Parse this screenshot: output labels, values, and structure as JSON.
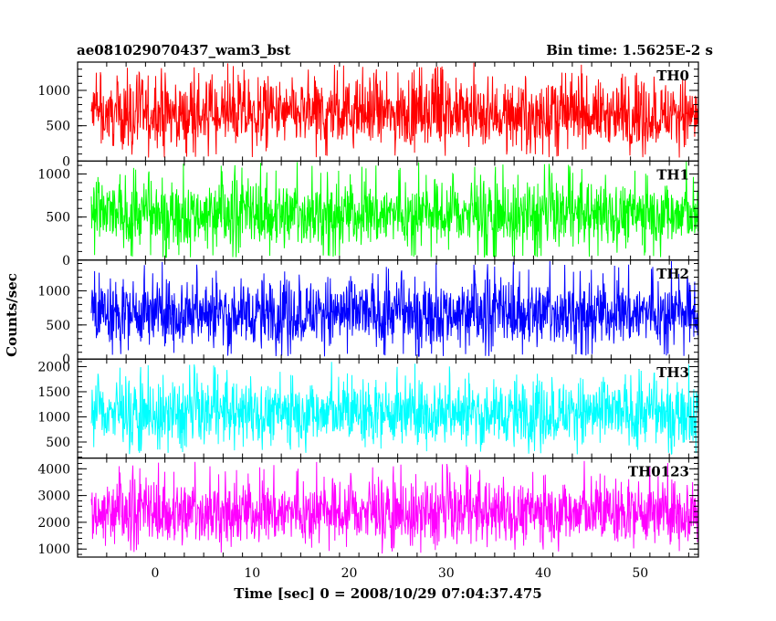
{
  "chart_data": {
    "type": "line",
    "title": "ae081029070437_wam3_bst",
    "subtitle": "Bin time: 1.5625E-2 s",
    "xlabel": "Time [sec] 0 = 2008/10/29 07:04:37.475",
    "ylabel": "Counts/sec",
    "xlim": [
      -8,
      56
    ],
    "x_ticks": [
      0,
      10,
      20,
      30,
      40,
      50
    ],
    "x_tick_labels": [
      "0",
      "10",
      "20",
      "30",
      "40",
      "50"
    ],
    "bin_time": 0.015625,
    "grid": false,
    "legend": "panel labels at top-right of each panel",
    "panels": [
      {
        "name": "TH0",
        "color": "#ff0000",
        "ylim": [
          0,
          1400
        ],
        "y_ticks": [
          0,
          500,
          1000
        ],
        "y_tick_labels": [
          "0",
          "500",
          "1000"
        ],
        "mean": 550,
        "min": 50,
        "max": 1400
      },
      {
        "name": "TH1",
        "color": "#00ff00",
        "ylim": [
          0,
          1150
        ],
        "y_ticks": [
          0,
          500,
          1000
        ],
        "y_tick_labels": [
          "0",
          "500",
          "1000"
        ],
        "mean": 480,
        "min": 30,
        "max": 1150
      },
      {
        "name": "TH2",
        "color": "#0000ff",
        "ylim": [
          0,
          1450
        ],
        "y_ticks": [
          0,
          500,
          1000
        ],
        "y_tick_labels": [
          "0",
          "500",
          "1000"
        ],
        "mean": 600,
        "min": 40,
        "max": 1450
      },
      {
        "name": "TH3",
        "color": "#00ffff",
        "ylim": [
          180,
          2150
        ],
        "y_ticks": [
          500,
          1000,
          1500,
          2000
        ],
        "y_tick_labels": [
          "500",
          "1000",
          "1500",
          "2000"
        ],
        "mean": 1050,
        "min": 250,
        "max": 2100
      },
      {
        "name": "TH0123",
        "color": "#ff00ff",
        "ylim": [
          700,
          4400
        ],
        "y_ticks": [
          1000,
          2000,
          3000,
          4000
        ],
        "y_tick_labels": [
          "1000",
          "2000",
          "3000",
          "4000"
        ],
        "mean": 2500,
        "min": 800,
        "max": 4300
      }
    ]
  }
}
